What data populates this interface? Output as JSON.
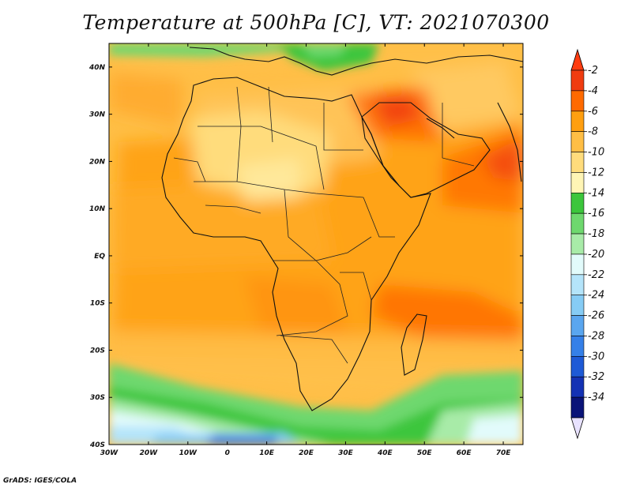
{
  "title": "Temperature at 500hPa [C], VT: 2021070300",
  "credit": "GrADS: IGES/COLA",
  "map": {
    "lon_range": [
      -30,
      75
    ],
    "lat_range": [
      -40,
      45
    ],
    "lon_ticks": [
      {
        "value": -30,
        "label": "30W"
      },
      {
        "value": -20,
        "label": "20W"
      },
      {
        "value": -10,
        "label": "10W"
      },
      {
        "value": 0,
        "label": "0"
      },
      {
        "value": 10,
        "label": "10E"
      },
      {
        "value": 20,
        "label": "20E"
      },
      {
        "value": 30,
        "label": "30E"
      },
      {
        "value": 40,
        "label": "40E"
      },
      {
        "value": 50,
        "label": "50E"
      },
      {
        "value": 60,
        "label": "60E"
      },
      {
        "value": 70,
        "label": "70E"
      }
    ],
    "lat_ticks": [
      {
        "value": 40,
        "label": "40N"
      },
      {
        "value": 30,
        "label": "30N"
      },
      {
        "value": 20,
        "label": "20N"
      },
      {
        "value": 10,
        "label": "10N"
      },
      {
        "value": 0,
        "label": "EQ"
      },
      {
        "value": -10,
        "label": "10S"
      },
      {
        "value": -20,
        "label": "20S"
      },
      {
        "value": -30,
        "label": "30S"
      },
      {
        "value": -40,
        "label": "40S"
      }
    ]
  },
  "colorbar": {
    "levels": [
      "-2",
      "-4",
      "-6",
      "-8",
      "-10",
      "-12",
      "-14",
      "-16",
      "-18",
      "-20",
      "-22",
      "-24",
      "-26",
      "-28",
      "-30",
      "-32",
      "-34"
    ],
    "colors": [
      "#f03c10",
      "#ff6a00",
      "#ff9f10",
      "#ffbe45",
      "#ffdc7c",
      "#fff5b5",
      "#3cc63c",
      "#6ed86e",
      "#a8eba8",
      "#e2fbfb",
      "#b4e4fa",
      "#86ccf5",
      "#5aa6ef",
      "#3580e8",
      "#1e5ad6",
      "#1432b4",
      "#0a1478"
    ],
    "top_color": "#ff3c10",
    "bottom_color": "#e8e2ff"
  }
}
